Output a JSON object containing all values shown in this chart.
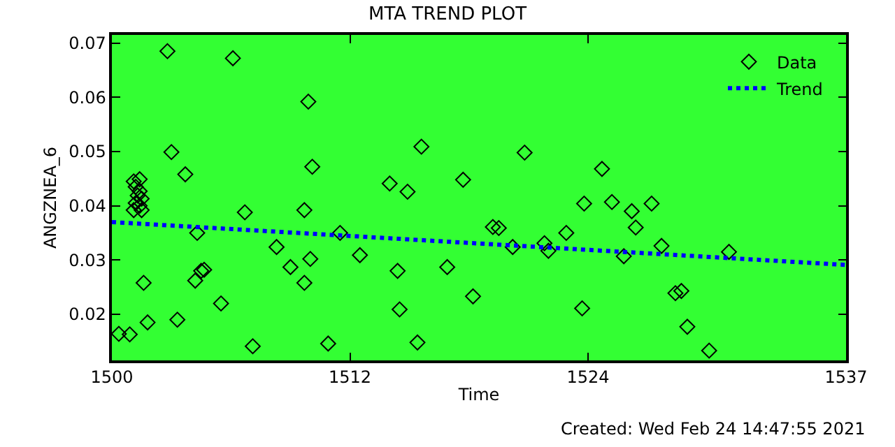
{
  "chart_data": {
    "type": "scatter",
    "title": "MTA TREND PLOT",
    "xlabel": "Time",
    "ylabel": "ANGZNEA_6",
    "annotations": [
      "Created: Wed Feb 24 14:47:55 2021"
    ],
    "xlim": [
      1500,
      1537
    ],
    "xticks": [
      1500,
      1512,
      1524,
      1537
    ],
    "ylim": [
      0.0115,
      0.0715
    ],
    "yticks": [
      {
        "value": 0.02,
        "label": "0.02"
      },
      {
        "value": 0.03,
        "label": "0.03"
      },
      {
        "value": 0.04,
        "label": "0.04"
      },
      {
        "value": 0.05,
        "label": "0.05"
      },
      {
        "value": 0.06,
        "label": "0.06"
      },
      {
        "value": 0.07,
        "label": "0.07"
      }
    ],
    "grid": false,
    "legend": "top right",
    "series": [
      {
        "name": "Data",
        "marker": "diamond",
        "color": "#000000",
        "x": [
          1502.8,
          1506.1,
          1509.9,
          1503.0,
          1503.7,
          1510.1,
          1501.1,
          1501.4,
          1501.2,
          1501.4,
          1501.3,
          1501.5,
          1501.2,
          1501.4,
          1501.1,
          1501.5,
          1506.7,
          1509.7,
          1504.3,
          1511.5,
          1508.3,
          1512.5,
          1510.0,
          1509.0,
          1504.5,
          1504.65,
          1504.2,
          1501.6,
          1509.7,
          1505.5,
          1503.3,
          1501.8,
          1500.35,
          1500.9,
          1507.1,
          1510.9,
          1515.6,
          1520.8,
          1524.7,
          1514.0,
          1514.9,
          1517.7,
          1523.8,
          1525.2,
          1519.2,
          1519.5,
          1522.9,
          1520.2,
          1521.8,
          1522.0,
          1514.4,
          1516.9,
          1518.2,
          1514.5,
          1523.7,
          1515.4,
          1526.2,
          1527.2,
          1526.4,
          1527.7,
          1525.8,
          1531.1,
          1528.4,
          1528.7,
          1529.0,
          1530.1
        ],
        "values": [
          0.0685,
          0.0672,
          0.0592,
          0.0499,
          0.0458,
          0.0472,
          0.0445,
          0.0449,
          0.0435,
          0.0427,
          0.0419,
          0.0413,
          0.0405,
          0.04,
          0.0392,
          0.0392,
          0.0388,
          0.0392,
          0.035,
          0.035,
          0.0324,
          0.0309,
          0.0302,
          0.0287,
          0.028,
          0.0282,
          0.0262,
          0.0258,
          0.0258,
          0.022,
          0.019,
          0.0185,
          0.0164,
          0.0163,
          0.0141,
          0.0146,
          0.0509,
          0.0498,
          0.0468,
          0.0441,
          0.0426,
          0.0448,
          0.0404,
          0.0407,
          0.0361,
          0.0359,
          0.035,
          0.0324,
          0.0331,
          0.0317,
          0.028,
          0.0287,
          0.0233,
          0.0209,
          0.0211,
          0.0148,
          0.039,
          0.0404,
          0.036,
          0.0326,
          0.0307,
          0.0315,
          0.0239,
          0.0243,
          0.0177,
          0.0133
        ]
      },
      {
        "name": "Trend",
        "type": "line",
        "line_style": "dotted",
        "marker": "none",
        "color": "#0000ff",
        "x": [
          1500,
          1537
        ],
        "values": [
          0.037,
          0.0291
        ]
      }
    ]
  }
}
